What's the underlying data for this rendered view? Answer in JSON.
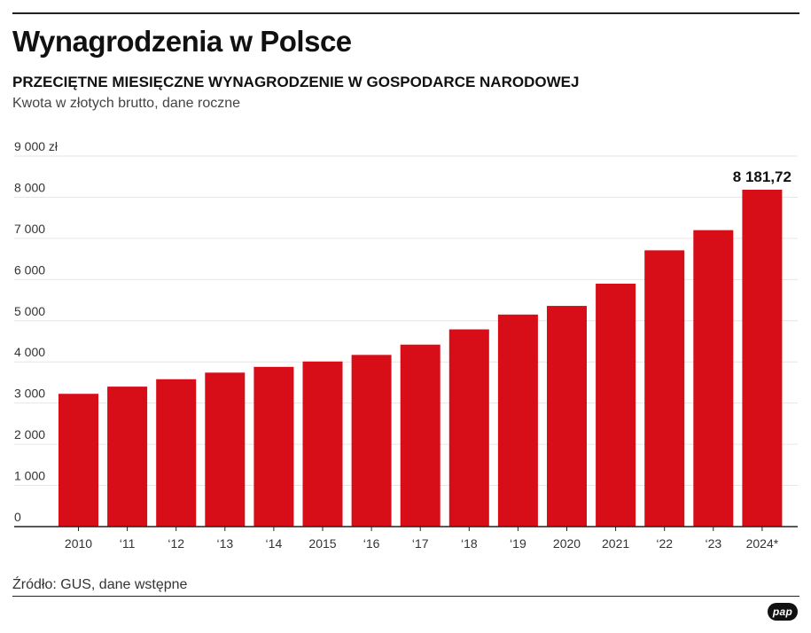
{
  "header": {
    "title": "Wynagrodzenia w Polsce",
    "subtitle": "PRZECIĘTNE MIESIĘCZNE WYNAGRODZENIE W GOSPODARCE NARODOWEJ",
    "note": "Kwota w złotych brutto, dane roczne"
  },
  "footer": {
    "source": "Źródło: GUS, dane wstępne",
    "logo": "pap"
  },
  "chart_data": {
    "type": "bar",
    "categories": [
      "2010",
      "‘11",
      "‘12",
      "‘13",
      "‘14",
      "2015",
      "‘16",
      "‘17",
      "‘18",
      "‘19",
      "2020",
      "2021",
      "‘22",
      "‘23",
      "2024*"
    ],
    "values": [
      3225,
      3400,
      3580,
      3740,
      3880,
      4010,
      4170,
      4420,
      4790,
      5150,
      5360,
      5900,
      6710,
      7200,
      8181.72
    ],
    "data_labels": [
      {
        "index": 14,
        "text": "8 181,72"
      }
    ],
    "ylim": [
      0,
      9000
    ],
    "yticks": [
      0,
      1000,
      2000,
      3000,
      4000,
      5000,
      6000,
      7000,
      8000,
      9000
    ],
    "ytick_labels": [
      "0",
      "1 000",
      "2 000",
      "3 000",
      "4 000",
      "5 000",
      "6 000",
      "7 000",
      "8 000",
      "9 000 zł"
    ],
    "xlabel": "",
    "ylabel": "",
    "grid": true,
    "legend": "none",
    "colors": {
      "bar": "#d70d18",
      "grid": "#e6e6e6",
      "axis": "#222222"
    }
  }
}
